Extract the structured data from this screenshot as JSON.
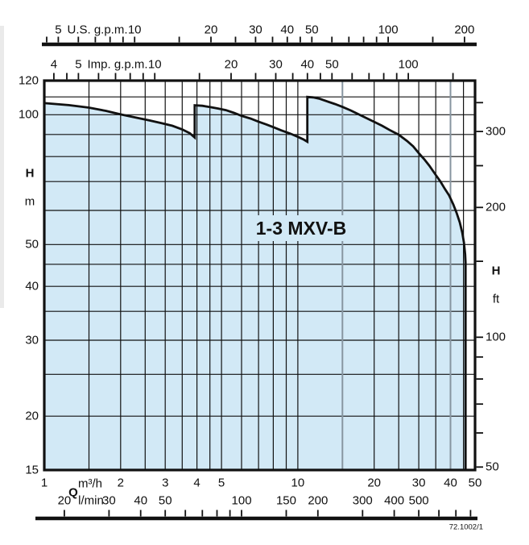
{
  "figure_code": "72.1002/1",
  "chart_data": {
    "type": "area",
    "title": "1-3 MXV-B",
    "scale": "log-log",
    "grid": "on",
    "x_axis": {
      "quantity_label": "Q",
      "primary_unit": "m³/h",
      "secondary_unit": "l/min",
      "range_m3h": [
        1,
        50
      ],
      "m3h_labels": [
        1,
        2,
        3,
        4,
        5,
        10,
        20,
        30,
        40,
        50
      ],
      "gridlines_m3h": [
        1.5,
        2,
        2.5,
        3,
        3.5,
        4,
        4.5,
        5,
        6,
        7,
        8,
        9,
        10,
        15,
        20,
        25,
        30,
        35,
        40,
        45
      ],
      "gray_gridlines_m3h": [
        15,
        40
      ],
      "lmin_per_m3h": 16.6667,
      "lmin_ticks": [
        20,
        30,
        40,
        50,
        60,
        70,
        80,
        90,
        100,
        150,
        200,
        300,
        400,
        500,
        600,
        700,
        800
      ],
      "lmin_labels": [
        20,
        30,
        40,
        50,
        100,
        150,
        200,
        300,
        400,
        500
      ]
    },
    "us_gpm_axis": {
      "unit_label": "U.S. g.p.m.",
      "m3h_per_gpm": 0.22712,
      "ticks": [
        4.5,
        5,
        6,
        7,
        8,
        9,
        10,
        15,
        20,
        25,
        30,
        35,
        40,
        45,
        50,
        60,
        70,
        80,
        90,
        100,
        150,
        200
      ],
      "labels": [
        5,
        10,
        20,
        30,
        40,
        50,
        100,
        200
      ]
    },
    "imp_gpm_axis": {
      "unit_label": "Imp. g.p.m.",
      "m3h_per_gpm": 0.27277,
      "ticks": [
        4,
        4.5,
        5,
        6,
        7,
        8,
        9,
        10,
        15,
        20,
        25,
        30,
        35,
        40,
        45,
        50,
        60,
        70,
        80,
        90,
        100,
        150
      ],
      "labels": [
        4,
        5,
        10,
        20,
        30,
        40,
        50,
        100
      ]
    },
    "y_axis": {
      "quantity_label": "H",
      "left_unit": "m",
      "right_unit": "ft",
      "range_m": [
        15,
        120
      ],
      "m_labels": [
        120,
        100,
        50,
        40,
        30,
        20,
        15
      ],
      "gridlines_m": [
        20,
        25,
        30,
        35,
        40,
        45,
        50,
        60,
        70,
        80,
        90,
        100,
        110
      ],
      "ft_per_m": 3.2808,
      "ft_ticks": [
        50,
        60,
        70,
        80,
        90,
        100,
        150,
        200,
        250,
        300,
        350
      ],
      "ft_labels": [
        50,
        100,
        200,
        300
      ]
    },
    "envelope_m3h_m": [
      [
        1,
        106.4
      ],
      [
        1.25,
        105.3
      ],
      [
        1.5,
        103.9
      ],
      [
        1.75,
        102.1
      ],
      [
        2,
        100.2
      ],
      [
        2.3,
        98.5
      ],
      [
        2.6,
        97.0
      ],
      [
        2.9,
        95.6
      ],
      [
        3.2,
        94.3
      ],
      [
        3.5,
        92.5
      ],
      [
        3.75,
        90.6
      ],
      [
        3.92,
        88.6
      ],
      [
        3.92,
        105.2
      ],
      [
        4.2,
        104.9
      ],
      [
        4.5,
        104.2
      ],
      [
        4.85,
        103.4
      ],
      [
        5.2,
        102.5
      ],
      [
        5.6,
        101.0
      ],
      [
        6,
        99.4
      ],
      [
        6.5,
        98.0
      ],
      [
        7,
        96.4
      ],
      [
        7.5,
        95.0
      ],
      [
        8,
        93.6
      ],
      [
        8.6,
        92.0
      ],
      [
        9.3,
        90.5
      ],
      [
        10,
        88.9
      ],
      [
        10.5,
        87.7
      ],
      [
        10.9,
        86.6
      ],
      [
        10.9,
        110
      ],
      [
        11.5,
        109.7
      ],
      [
        12.2,
        108.9
      ],
      [
        13,
        107.5
      ],
      [
        14,
        105.9
      ],
      [
        15,
        104.3
      ],
      [
        16.2,
        102.3
      ],
      [
        17.5,
        100.0
      ],
      [
        19,
        97.7
      ],
      [
        20,
        96.3
      ],
      [
        21.5,
        94.3
      ],
      [
        23,
        92.2
      ],
      [
        25,
        89.9
      ],
      [
        27,
        86.9
      ],
      [
        28.5,
        84.5
      ],
      [
        30,
        81.5
      ],
      [
        31.5,
        78.9
      ],
      [
        33,
        76.2
      ],
      [
        35,
        72.5
      ],
      [
        36.5,
        70.0
      ],
      [
        38,
        67.3
      ],
      [
        39.5,
        65.0
      ],
      [
        41,
        62.0
      ],
      [
        42.3,
        59.2
      ],
      [
        43.5,
        56.3
      ],
      [
        44.5,
        53.3
      ],
      [
        45.2,
        50.5
      ],
      [
        45.7,
        47.5
      ],
      [
        45.85,
        45.5
      ],
      [
        45.85,
        15
      ]
    ],
    "colors": {
      "area_fill": "#d2e9f6",
      "line": "#111111",
      "gray_gridline": "#8795a0"
    }
  }
}
